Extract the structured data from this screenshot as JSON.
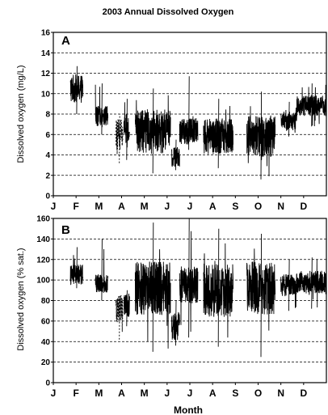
{
  "chart_data": {
    "title": "2003 Annual Dissolved Oxygen",
    "xlabel": "Month",
    "months": [
      "J",
      "F",
      "M",
      "A",
      "M",
      "J",
      "J",
      "A",
      "S",
      "O",
      "N",
      "D"
    ],
    "panels": [
      {
        "label": "A",
        "type": "line",
        "ylabel": "Dissolved oxygen (mg/L)",
        "ylim": [
          0,
          16
        ],
        "yticks": [
          0,
          2,
          4,
          6,
          8,
          10,
          12,
          14,
          16
        ],
        "grid": true,
        "segments": [
          {
            "x0": 0.75,
            "x1": 1.3,
            "mid": 10.5,
            "amp": 1.4,
            "lo": 8.0,
            "hi": 12.7
          },
          {
            "x0": 1.85,
            "x1": 2.4,
            "mid": 7.8,
            "amp": 1.0,
            "lo": 6.0,
            "hi": 11.0
          },
          {
            "x0": 2.75,
            "x1": 3.05,
            "mid": 6.0,
            "amp": 1.5,
            "lo": 3.2,
            "hi": 8.0,
            "dashed": true
          },
          {
            "x0": 3.1,
            "x1": 3.35,
            "mid": 6.5,
            "amp": 1.5,
            "lo": 3.5,
            "hi": 9.5
          },
          {
            "x0": 3.6,
            "x1": 5.15,
            "mid": 6.3,
            "amp": 2.2,
            "lo": 2.2,
            "hi": 10.5
          },
          {
            "x0": 5.2,
            "x1": 5.55,
            "mid": 3.8,
            "amp": 1.0,
            "lo": 2.5,
            "hi": 5.5
          },
          {
            "x0": 5.55,
            "x1": 6.35,
            "mid": 6.3,
            "amp": 1.3,
            "lo": 4.5,
            "hi": 11.7
          },
          {
            "x0": 6.6,
            "x1": 7.9,
            "mid": 5.8,
            "amp": 1.8,
            "lo": 2.7,
            "hi": 9.5
          },
          {
            "x0": 8.5,
            "x1": 9.75,
            "mid": 5.8,
            "amp": 2.0,
            "lo": 1.6,
            "hi": 10.2
          },
          {
            "x0": 10.0,
            "x1": 10.7,
            "mid": 7.4,
            "amp": 0.9,
            "lo": 5.8,
            "hi": 9.2
          },
          {
            "x0": 10.7,
            "x1": 12.0,
            "mid": 8.8,
            "amp": 1.0,
            "lo": 6.8,
            "hi": 11.0
          }
        ]
      },
      {
        "label": "B",
        "type": "line",
        "ylabel": "Dissolved oxygen (% sat.)",
        "ylim": [
          0,
          160
        ],
        "yticks": [
          0,
          20,
          40,
          60,
          80,
          100,
          120,
          140,
          160
        ],
        "grid": true,
        "segments": [
          {
            "x0": 0.75,
            "x1": 1.3,
            "mid": 105,
            "amp": 10,
            "lo": 92,
            "hi": 132
          },
          {
            "x0": 1.85,
            "x1": 2.4,
            "mid": 97,
            "amp": 9,
            "lo": 80,
            "hi": 140
          },
          {
            "x0": 2.75,
            "x1": 3.05,
            "mid": 72,
            "amp": 14,
            "lo": 42,
            "hi": 86,
            "dashed": true
          },
          {
            "x0": 3.1,
            "x1": 3.35,
            "mid": 75,
            "amp": 12,
            "lo": 55,
            "hi": 90
          },
          {
            "x0": 3.6,
            "x1": 5.15,
            "mid": 92,
            "amp": 26,
            "lo": 30,
            "hi": 156
          },
          {
            "x0": 5.2,
            "x1": 5.55,
            "mid": 55,
            "amp": 14,
            "lo": 36,
            "hi": 80
          },
          {
            "x0": 5.55,
            "x1": 6.35,
            "mid": 95,
            "amp": 18,
            "lo": 44,
            "hi": 160
          },
          {
            "x0": 6.6,
            "x1": 7.9,
            "mid": 90,
            "amp": 26,
            "lo": 35,
            "hi": 150
          },
          {
            "x0": 8.5,
            "x1": 9.75,
            "mid": 92,
            "amp": 26,
            "lo": 25,
            "hi": 145
          },
          {
            "x0": 10.0,
            "x1": 10.7,
            "mid": 95,
            "amp": 11,
            "lo": 70,
            "hi": 120
          },
          {
            "x0": 10.7,
            "x1": 12.0,
            "mid": 98,
            "amp": 11,
            "lo": 72,
            "hi": 122
          }
        ]
      }
    ]
  }
}
